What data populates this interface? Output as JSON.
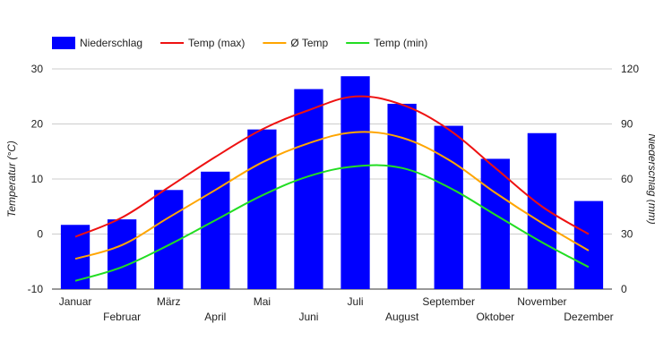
{
  "chart_data": {
    "type": "bar",
    "categories": [
      "Januar",
      "Februar",
      "März",
      "April",
      "Mai",
      "Juni",
      "Juli",
      "August",
      "September",
      "Oktober",
      "November",
      "Dezember"
    ],
    "series": [
      {
        "name": "Niederschlag",
        "kind": "bar",
        "axis": "right",
        "color": "#0000ff",
        "values": [
          35,
          38,
          54,
          64,
          87,
          109,
          116,
          101,
          89,
          71,
          85,
          48
        ]
      },
      {
        "name": "Temp (max)",
        "kind": "line",
        "axis": "left",
        "color": "#ee1111",
        "values": [
          -0.5,
          3,
          8.5,
          14,
          19,
          22.5,
          25,
          23.5,
          19,
          12,
          5,
          0
        ]
      },
      {
        "name": "Ø Temp",
        "kind": "line",
        "axis": "left",
        "color": "#ffa500",
        "values": [
          -4.5,
          -2,
          3,
          8,
          13,
          16.5,
          18.5,
          17.5,
          13.5,
          7.5,
          2,
          -3
        ]
      },
      {
        "name": "Temp (min)",
        "kind": "line",
        "axis": "left",
        "color": "#22dd22",
        "values": [
          -8.5,
          -6,
          -2,
          2.5,
          7,
          10.5,
          12.3,
          12,
          8.5,
          3.5,
          -1.5,
          -6
        ]
      }
    ],
    "ylabel": "Temperatur (°C)",
    "y2label": "Niederschlag (mm)",
    "ylim": [
      -10,
      30
    ],
    "y2lim": [
      0,
      120
    ],
    "yticks": [
      "-10",
      "0",
      "10",
      "20",
      "30"
    ],
    "y2ticks": [
      "0",
      "30",
      "60",
      "90",
      "120"
    ],
    "grid": true,
    "legend": "top-left"
  }
}
